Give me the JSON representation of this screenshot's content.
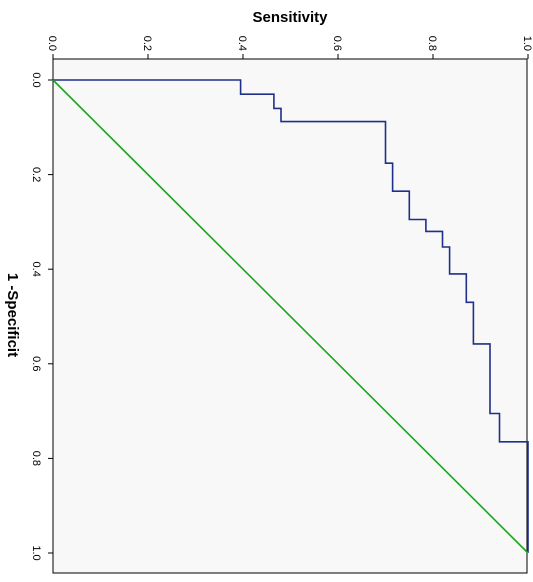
{
  "chart_data": {
    "type": "line",
    "title": "",
    "xlabel": "Sensitivity",
    "ylabel": "1 -Specificit",
    "xlim": [
      0,
      1
    ],
    "ylim": [
      0,
      1
    ],
    "x_axis_position": "top",
    "y_axis_orientation": "downward",
    "x_ticks": [
      "0.0",
      "0.2",
      "0.4",
      "0.6",
      "0.8",
      "1.0"
    ],
    "y_ticks": [
      "0.0",
      "0.2",
      "0.4",
      "0.6",
      "0.8",
      "1.0"
    ],
    "grid": false,
    "legend": "none",
    "plot_background": "#f8f8f8",
    "series": [
      {
        "color": "#1f2f8a",
        "style": "step",
        "points": [
          [
            0.0,
            0.0
          ],
          [
            0.395,
            0.0
          ],
          [
            0.395,
            0.03
          ],
          [
            0.465,
            0.03
          ],
          [
            0.465,
            0.06
          ],
          [
            0.48,
            0.06
          ],
          [
            0.48,
            0.088
          ],
          [
            0.7,
            0.088
          ],
          [
            0.7,
            0.176
          ],
          [
            0.715,
            0.176
          ],
          [
            0.715,
            0.235
          ],
          [
            0.75,
            0.235
          ],
          [
            0.75,
            0.295
          ],
          [
            0.785,
            0.295
          ],
          [
            0.785,
            0.32
          ],
          [
            0.82,
            0.32
          ],
          [
            0.82,
            0.353
          ],
          [
            0.835,
            0.353
          ],
          [
            0.835,
            0.41
          ],
          [
            0.87,
            0.41
          ],
          [
            0.87,
            0.47
          ],
          [
            0.885,
            0.47
          ],
          [
            0.885,
            0.558
          ],
          [
            0.92,
            0.558
          ],
          [
            0.92,
            0.705
          ],
          [
            0.94,
            0.705
          ],
          [
            0.94,
            0.765
          ],
          [
            1.0,
            0.765
          ],
          [
            1.0,
            1.0
          ]
        ]
      },
      {
        "color": "#1aa51a",
        "style": "straight",
        "points": [
          [
            0.0,
            0.0
          ],
          [
            1.0,
            1.0
          ]
        ]
      }
    ]
  }
}
